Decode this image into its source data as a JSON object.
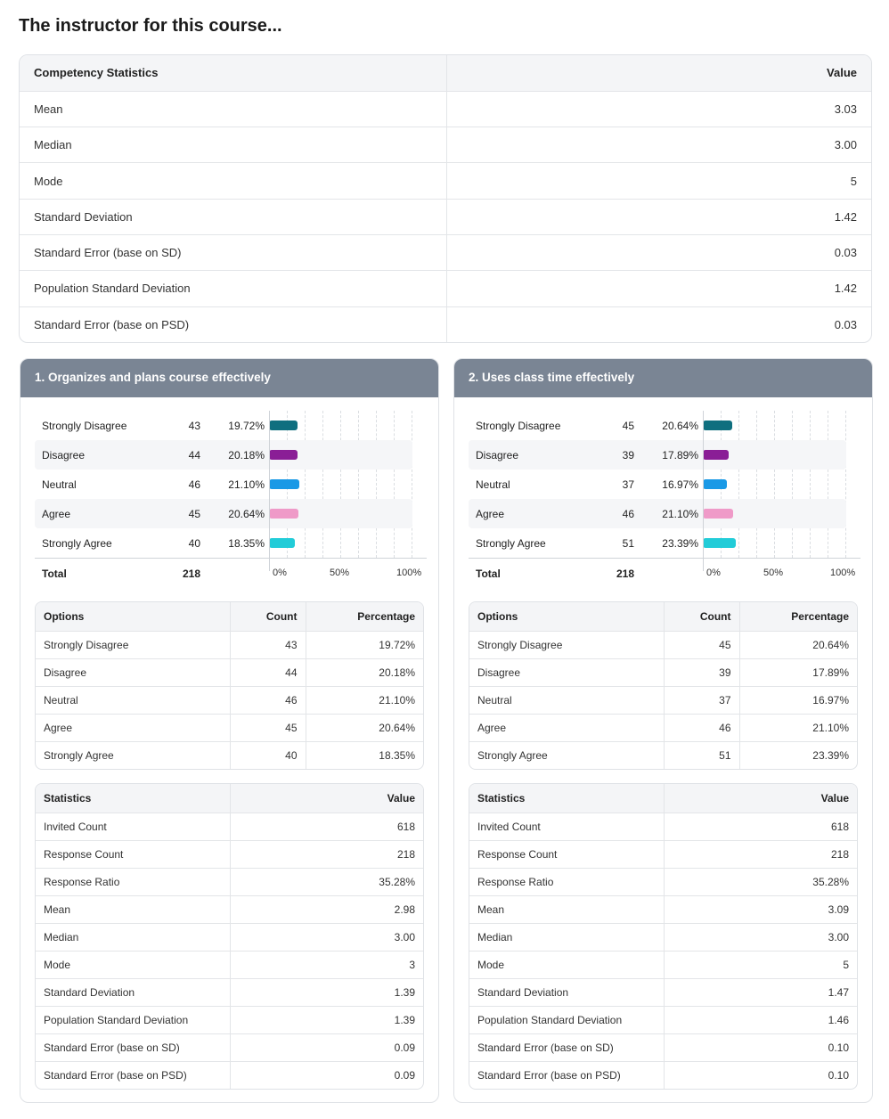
{
  "title": "The instructor for this course...",
  "competency": {
    "headers": [
      "Competency Statistics",
      "Value"
    ],
    "rows": [
      {
        "label": "Mean",
        "value": "3.03"
      },
      {
        "label": "Median",
        "value": "3.00"
      },
      {
        "label": "Mode",
        "value": "5"
      },
      {
        "label": "Standard Deviation",
        "value": "1.42"
      },
      {
        "label": "Standard Error (base on SD)",
        "value": "0.03"
      },
      {
        "label": "Population Standard Deviation",
        "value": "1.42"
      },
      {
        "label": "Standard Error (base on PSD)",
        "value": "0.03"
      }
    ]
  },
  "colors": {
    "Strongly Disagree": "#0f6f7f",
    "Disagree": "#8a1e96",
    "Neutral": "#1999e6",
    "Agree": "#ef9ac8",
    "Strongly Agree": "#22ccd8"
  },
  "questions": [
    {
      "title": "1. Organizes and plans course effectively",
      "chart_data": {
        "type": "bar",
        "categories": [
          "Strongly Disagree",
          "Disagree",
          "Neutral",
          "Agree",
          "Strongly Agree"
        ],
        "counts": [
          "43",
          "44",
          "46",
          "45",
          "40"
        ],
        "percentages": [
          "19.72%",
          "20.18%",
          "21.10%",
          "20.64%",
          "18.35%"
        ],
        "values": [
          19.72,
          20.18,
          21.1,
          20.64,
          18.35
        ],
        "total_label": "Total",
        "total": "218",
        "xticks": [
          "0%",
          "50%",
          "100%"
        ],
        "xlim": [
          0,
          100
        ]
      },
      "options_headers": [
        "Options",
        "Count",
        "Percentage"
      ],
      "options_rows": [
        [
          "Strongly Disagree",
          "43",
          "19.72%"
        ],
        [
          "Disagree",
          "44",
          "20.18%"
        ],
        [
          "Neutral",
          "46",
          "21.10%"
        ],
        [
          "Agree",
          "45",
          "20.64%"
        ],
        [
          "Strongly Agree",
          "40",
          "18.35%"
        ]
      ],
      "stats_headers": [
        "Statistics",
        "Value"
      ],
      "stats_rows": [
        [
          "Invited Count",
          "618"
        ],
        [
          "Response Count",
          "218"
        ],
        [
          "Response Ratio",
          "35.28%"
        ],
        [
          "Mean",
          "2.98"
        ],
        [
          "Median",
          "3.00"
        ],
        [
          "Mode",
          "3"
        ],
        [
          "Standard Deviation",
          "1.39"
        ],
        [
          "Population Standard Deviation",
          "1.39"
        ],
        [
          "Standard Error (base on SD)",
          "0.09"
        ],
        [
          "Standard Error (base on PSD)",
          "0.09"
        ]
      ]
    },
    {
      "title": "2. Uses class time effectively",
      "chart_data": {
        "type": "bar",
        "categories": [
          "Strongly Disagree",
          "Disagree",
          "Neutral",
          "Agree",
          "Strongly Agree"
        ],
        "counts": [
          "45",
          "39",
          "37",
          "46",
          "51"
        ],
        "percentages": [
          "20.64%",
          "17.89%",
          "16.97%",
          "21.10%",
          "23.39%"
        ],
        "values": [
          20.64,
          17.89,
          16.97,
          21.1,
          23.39
        ],
        "total_label": "Total",
        "total": "218",
        "xticks": [
          "0%",
          "50%",
          "100%"
        ],
        "xlim": [
          0,
          100
        ]
      },
      "options_headers": [
        "Options",
        "Count",
        "Percentage"
      ],
      "options_rows": [
        [
          "Strongly Disagree",
          "45",
          "20.64%"
        ],
        [
          "Disagree",
          "39",
          "17.89%"
        ],
        [
          "Neutral",
          "37",
          "16.97%"
        ],
        [
          "Agree",
          "46",
          "21.10%"
        ],
        [
          "Strongly Agree",
          "51",
          "23.39%"
        ]
      ],
      "stats_headers": [
        "Statistics",
        "Value"
      ],
      "stats_rows": [
        [
          "Invited Count",
          "618"
        ],
        [
          "Response Count",
          "218"
        ],
        [
          "Response Ratio",
          "35.28%"
        ],
        [
          "Mean",
          "3.09"
        ],
        [
          "Median",
          "3.00"
        ],
        [
          "Mode",
          "5"
        ],
        [
          "Standard Deviation",
          "1.47"
        ],
        [
          "Population Standard Deviation",
          "1.46"
        ],
        [
          "Standard Error (base on SD)",
          "0.10"
        ],
        [
          "Standard Error (base on PSD)",
          "0.10"
        ]
      ]
    }
  ]
}
